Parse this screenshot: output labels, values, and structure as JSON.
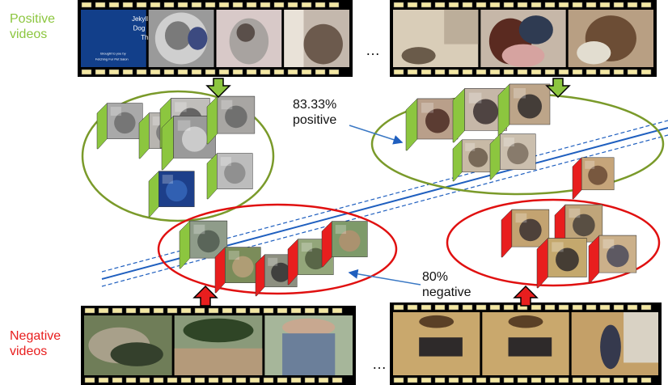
{
  "labels": {
    "positive_videos": [
      "Positive",
      "videos"
    ],
    "negative_videos": [
      "Negative",
      "videos"
    ],
    "positive_pct": [
      "83.33%",
      "positive"
    ],
    "negative_pct": [
      "80%",
      "negative"
    ],
    "ellipsis": "…"
  },
  "frame_text": {
    "title_line1": "Jekyll",
    "title_line2": "Dog",
    "title_line3": "Th",
    "credit_line1": "Brought to you by",
    "credit_line2": "Fetching Fur Pet Salon"
  },
  "colors": {
    "positive": "#8cc63f",
    "negative": "#e81e1e",
    "positive_ellipse": "#7a9a2a",
    "negative_ellipse": "#e01010",
    "separator": "#1f5fbf",
    "filmstrip": "#000000",
    "filmstrip_hole": "#f3e7a3"
  }
}
